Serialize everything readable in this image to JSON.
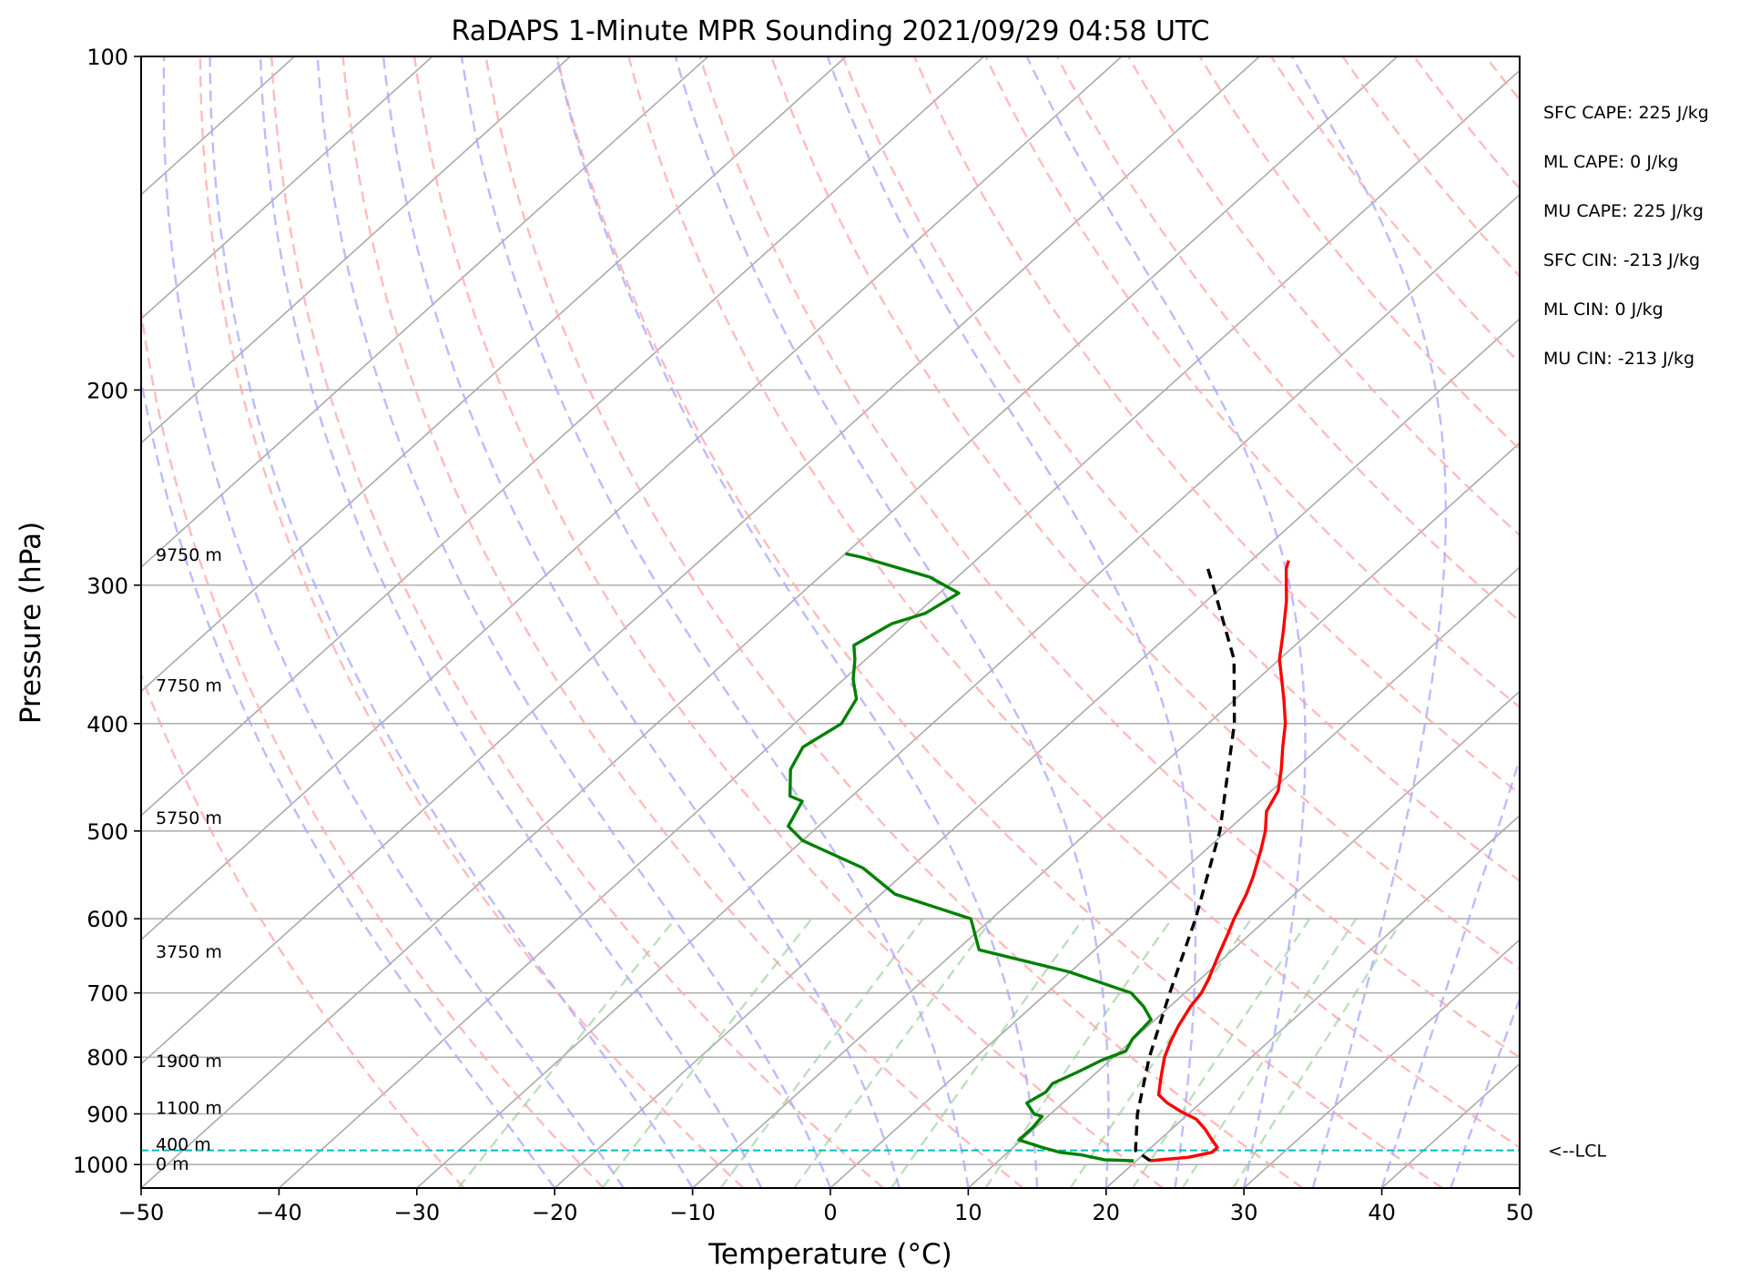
{
  "chart_data": {
    "type": "line",
    "title": "RaDAPS 1-Minute MPR Sounding 2021/09/29 04:58 UTC",
    "xlabel": "Temperature (°C)",
    "ylabel": "Pressure (hPa)",
    "xlim": [
      -50,
      50
    ],
    "ylim": [
      1050,
      100
    ],
    "y_scale": "log",
    "grid": true,
    "x_ticks": [
      -50,
      -40,
      -30,
      -20,
      -10,
      0,
      10,
      20,
      30,
      40,
      50
    ],
    "x_tick_labels": [
      "−50",
      "−40",
      "−30",
      "−20",
      "−10",
      "0",
      "10",
      "20",
      "30",
      "40",
      "50"
    ],
    "y_ticks": [
      100,
      200,
      300,
      400,
      500,
      600,
      700,
      800,
      900,
      1000
    ],
    "y_tick_labels": [
      "100",
      "200",
      "300",
      "400",
      "500",
      "600",
      "700",
      "800",
      "900",
      "1000"
    ],
    "series": [
      {
        "role": "temperature",
        "color": "#ff0000",
        "points": [
          [
            992,
            21.0
          ],
          [
            985,
            23.5
          ],
          [
            975,
            24.8
          ],
          [
            965,
            24.8
          ],
          [
            950,
            23.8
          ],
          [
            930,
            22.5
          ],
          [
            910,
            21.0
          ],
          [
            895,
            19.2
          ],
          [
            880,
            17.6
          ],
          [
            865,
            16.3
          ],
          [
            850,
            15.7
          ],
          [
            830,
            14.9
          ],
          [
            800,
            13.7
          ],
          [
            775,
            12.9
          ],
          [
            750,
            12.2
          ],
          [
            720,
            11.5
          ],
          [
            700,
            11.2
          ],
          [
            680,
            10.6
          ],
          [
            650,
            9.5
          ],
          [
            620,
            8.4
          ],
          [
            600,
            7.6
          ],
          [
            570,
            6.5
          ],
          [
            550,
            5.6
          ],
          [
            520,
            4.0
          ],
          [
            500,
            2.8
          ],
          [
            480,
            1.3
          ],
          [
            460,
            0.5
          ],
          [
            440,
            -1.0
          ],
          [
            420,
            -2.7
          ],
          [
            400,
            -4.4
          ],
          [
            380,
            -6.5
          ],
          [
            360,
            -8.8
          ],
          [
            350,
            -10.0
          ],
          [
            330,
            -12.0
          ],
          [
            310,
            -14.2
          ],
          [
            290,
            -16.8
          ],
          [
            285,
            -17.3
          ]
        ]
      },
      {
        "role": "dewpoint",
        "color": "#008000",
        "points": [
          [
            992,
            19.8
          ],
          [
            990,
            17.6
          ],
          [
            980,
            15.5
          ],
          [
            975,
            13.8
          ],
          [
            965,
            12.1
          ],
          [
            950,
            9.8
          ],
          [
            925,
            9.8
          ],
          [
            905,
            9.6
          ],
          [
            900,
            8.8
          ],
          [
            880,
            7.4
          ],
          [
            860,
            7.9
          ],
          [
            845,
            7.7
          ],
          [
            825,
            8.6
          ],
          [
            805,
            9.4
          ],
          [
            790,
            10.4
          ],
          [
            770,
            9.9
          ],
          [
            740,
            9.7
          ],
          [
            720,
            8.1
          ],
          [
            700,
            6.1
          ],
          [
            670,
            -0.1
          ],
          [
            640,
            -8.4
          ],
          [
            600,
            -11.5
          ],
          [
            570,
            -19.0
          ],
          [
            540,
            -23.4
          ],
          [
            510,
            -30.0
          ],
          [
            495,
            -32.2
          ],
          [
            470,
            -33.2
          ],
          [
            465,
            -34.5
          ],
          [
            440,
            -36.6
          ],
          [
            420,
            -37.5
          ],
          [
            400,
            -36.6
          ],
          [
            380,
            -37.5
          ],
          [
            365,
            -39.3
          ],
          [
            350,
            -40.8
          ],
          [
            340,
            -42.0
          ],
          [
            325,
            -41.0
          ],
          [
            318,
            -39.4
          ],
          [
            305,
            -38.6
          ],
          [
            295,
            -42.0
          ],
          [
            283,
            -48.6
          ],
          [
            281,
            -50.0
          ]
        ]
      },
      {
        "role": "parcel",
        "color": "#000000",
        "points": [
          [
            992,
            21.0
          ],
          [
            971,
            19.1
          ],
          [
            900,
            16.3
          ],
          [
            800,
            12.6
          ],
          [
            700,
            8.9
          ],
          [
            600,
            4.8
          ],
          [
            500,
            -0.5
          ],
          [
            400,
            -8.1
          ],
          [
            350,
            -13.3
          ],
          [
            300,
            -20.8
          ],
          [
            287,
            -23.0
          ]
        ]
      }
    ],
    "height_labels": [
      {
        "text": "0 m",
        "pressure": 1000
      },
      {
        "text": "400 m",
        "pressure": 960
      },
      {
        "text": "1100 m",
        "pressure": 890
      },
      {
        "text": "1900 m",
        "pressure": 807
      },
      {
        "text": "3750 m",
        "pressure": 643
      },
      {
        "text": "5750 m",
        "pressure": 487
      },
      {
        "text": "7750 m",
        "pressure": 370
      },
      {
        "text": "9750 m",
        "pressure": 282
      }
    ],
    "lcl": {
      "pressure": 971,
      "label": "<--LCL",
      "color": "#00bfbf"
    },
    "indices": [
      "SFC CAPE: 225 J/kg",
      "ML CAPE: 0 J/kg",
      "MU CAPE: 225 J/kg",
      "SFC CIN: -213 J/kg",
      "ML CIN: 0 J/kg",
      "MU CIN: -213 J/kg"
    ],
    "colors": {
      "isotherm": "#aaaaaa",
      "dry_adiabat": "#ffaaaa",
      "moist_adiabat": "#aaaaff",
      "mixing_ratio": "#99cc99"
    }
  }
}
